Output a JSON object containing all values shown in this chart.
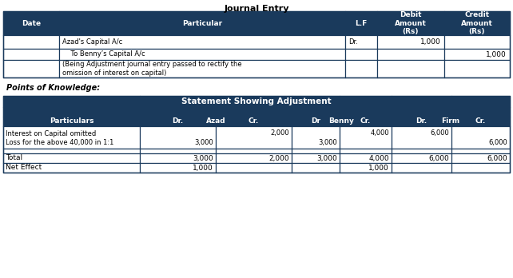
{
  "title1": "Journal Entry",
  "header_bg": "#1a3a5c",
  "header_text": "#ffffff",
  "white_bg": "#ffffff",
  "black_text": "#000000",
  "points_label": "Points of Knowledge:",
  "title2": "Statement Showing Adjustment",
  "jcols": [
    4,
    74,
    432,
    472,
    556,
    638
  ],
  "t2cols": [
    4,
    175,
    270,
    365,
    425,
    490,
    565,
    638
  ]
}
